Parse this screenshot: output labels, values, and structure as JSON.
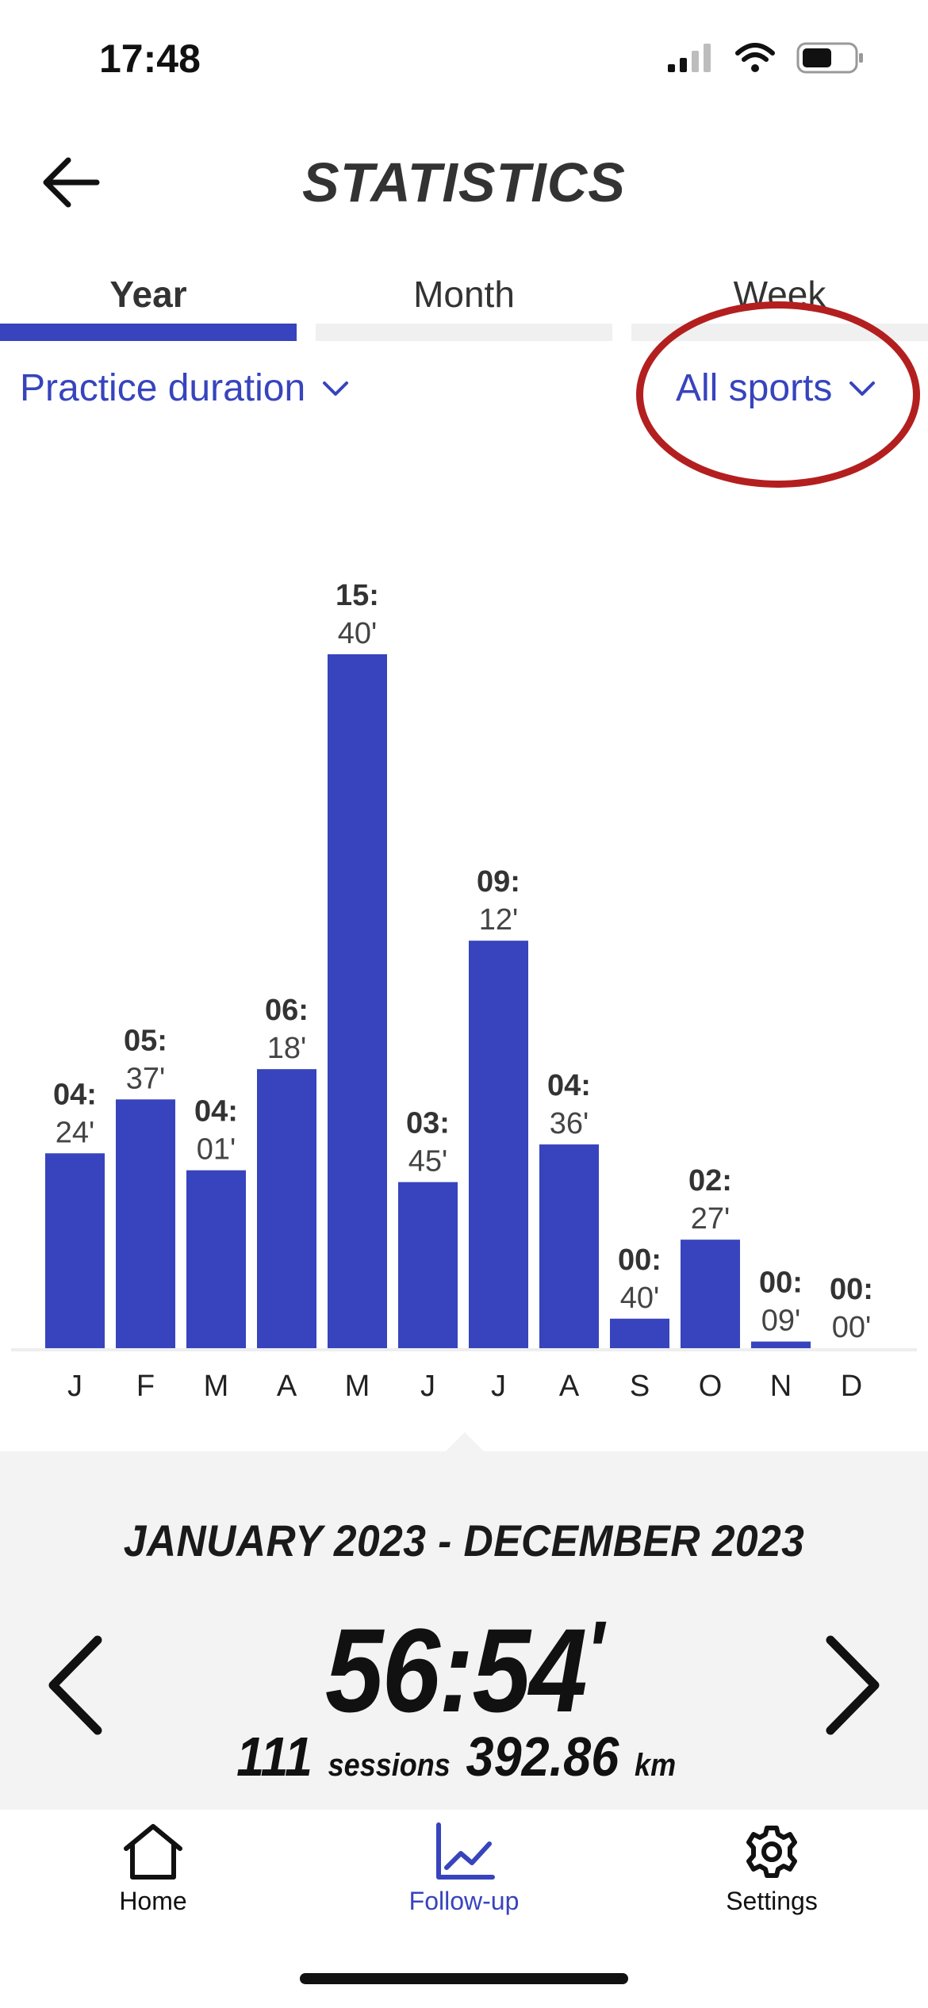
{
  "status_bar": {
    "time": "17:48",
    "icons": [
      "signal-icon",
      "wifi-icon",
      "battery-icon"
    ]
  },
  "header": {
    "title": "STATISTICS",
    "back_icon": "arrow-left-icon"
  },
  "tabs": [
    {
      "label": "Year",
      "active": true
    },
    {
      "label": "Month",
      "active": false
    },
    {
      "label": "Week",
      "active": false
    }
  ],
  "selectors": {
    "metric": {
      "label": "Practice duration",
      "icon": "chevron-down-icon"
    },
    "sport": {
      "label": "All sports",
      "icon": "chevron-down-icon"
    }
  },
  "colors": {
    "accent": "#3744bd",
    "bar": "#3744bd",
    "highlight_ring": "#b31f1f",
    "summary_bg": "#f3f3f3"
  },
  "chart_data": {
    "type": "bar",
    "categories": [
      "J",
      "F",
      "M",
      "A",
      "M",
      "J",
      "J",
      "A",
      "S",
      "O",
      "N",
      "D"
    ],
    "value_labels": [
      [
        "04:",
        "24'"
      ],
      [
        "05:",
        "37'"
      ],
      [
        "04:",
        "01'"
      ],
      [
        "06:",
        "18'"
      ],
      [
        "15:",
        "40'"
      ],
      [
        "03:",
        "45'"
      ],
      [
        "09:",
        "12'"
      ],
      [
        "04:",
        "36'"
      ],
      [
        "00:",
        "40'"
      ],
      [
        "02:",
        "27'"
      ],
      [
        "00:",
        "09'"
      ],
      [
        "00:",
        "00'"
      ]
    ],
    "values": [
      264,
      337,
      241,
      378,
      940,
      225,
      552,
      276,
      40,
      147,
      9,
      0
    ],
    "unit": "minutes",
    "ylim": [
      0,
      940
    ],
    "grid": false,
    "legend": "none"
  },
  "summary": {
    "period": "JANUARY 2023 - DECEMBER 2023",
    "total_main": "56:54",
    "total_suffix": "'",
    "sessions_value": "111",
    "sessions_label": "sessions",
    "distance_value": "392.86",
    "distance_unit": "km",
    "prev_icon": "chevron-left-icon",
    "next_icon": "chevron-right-icon"
  },
  "bottom_nav": [
    {
      "label": "Home",
      "icon": "home-icon",
      "active": false
    },
    {
      "label": "Follow-up",
      "icon": "chart-icon",
      "active": true
    },
    {
      "label": "Settings",
      "icon": "gear-icon",
      "active": false
    }
  ]
}
